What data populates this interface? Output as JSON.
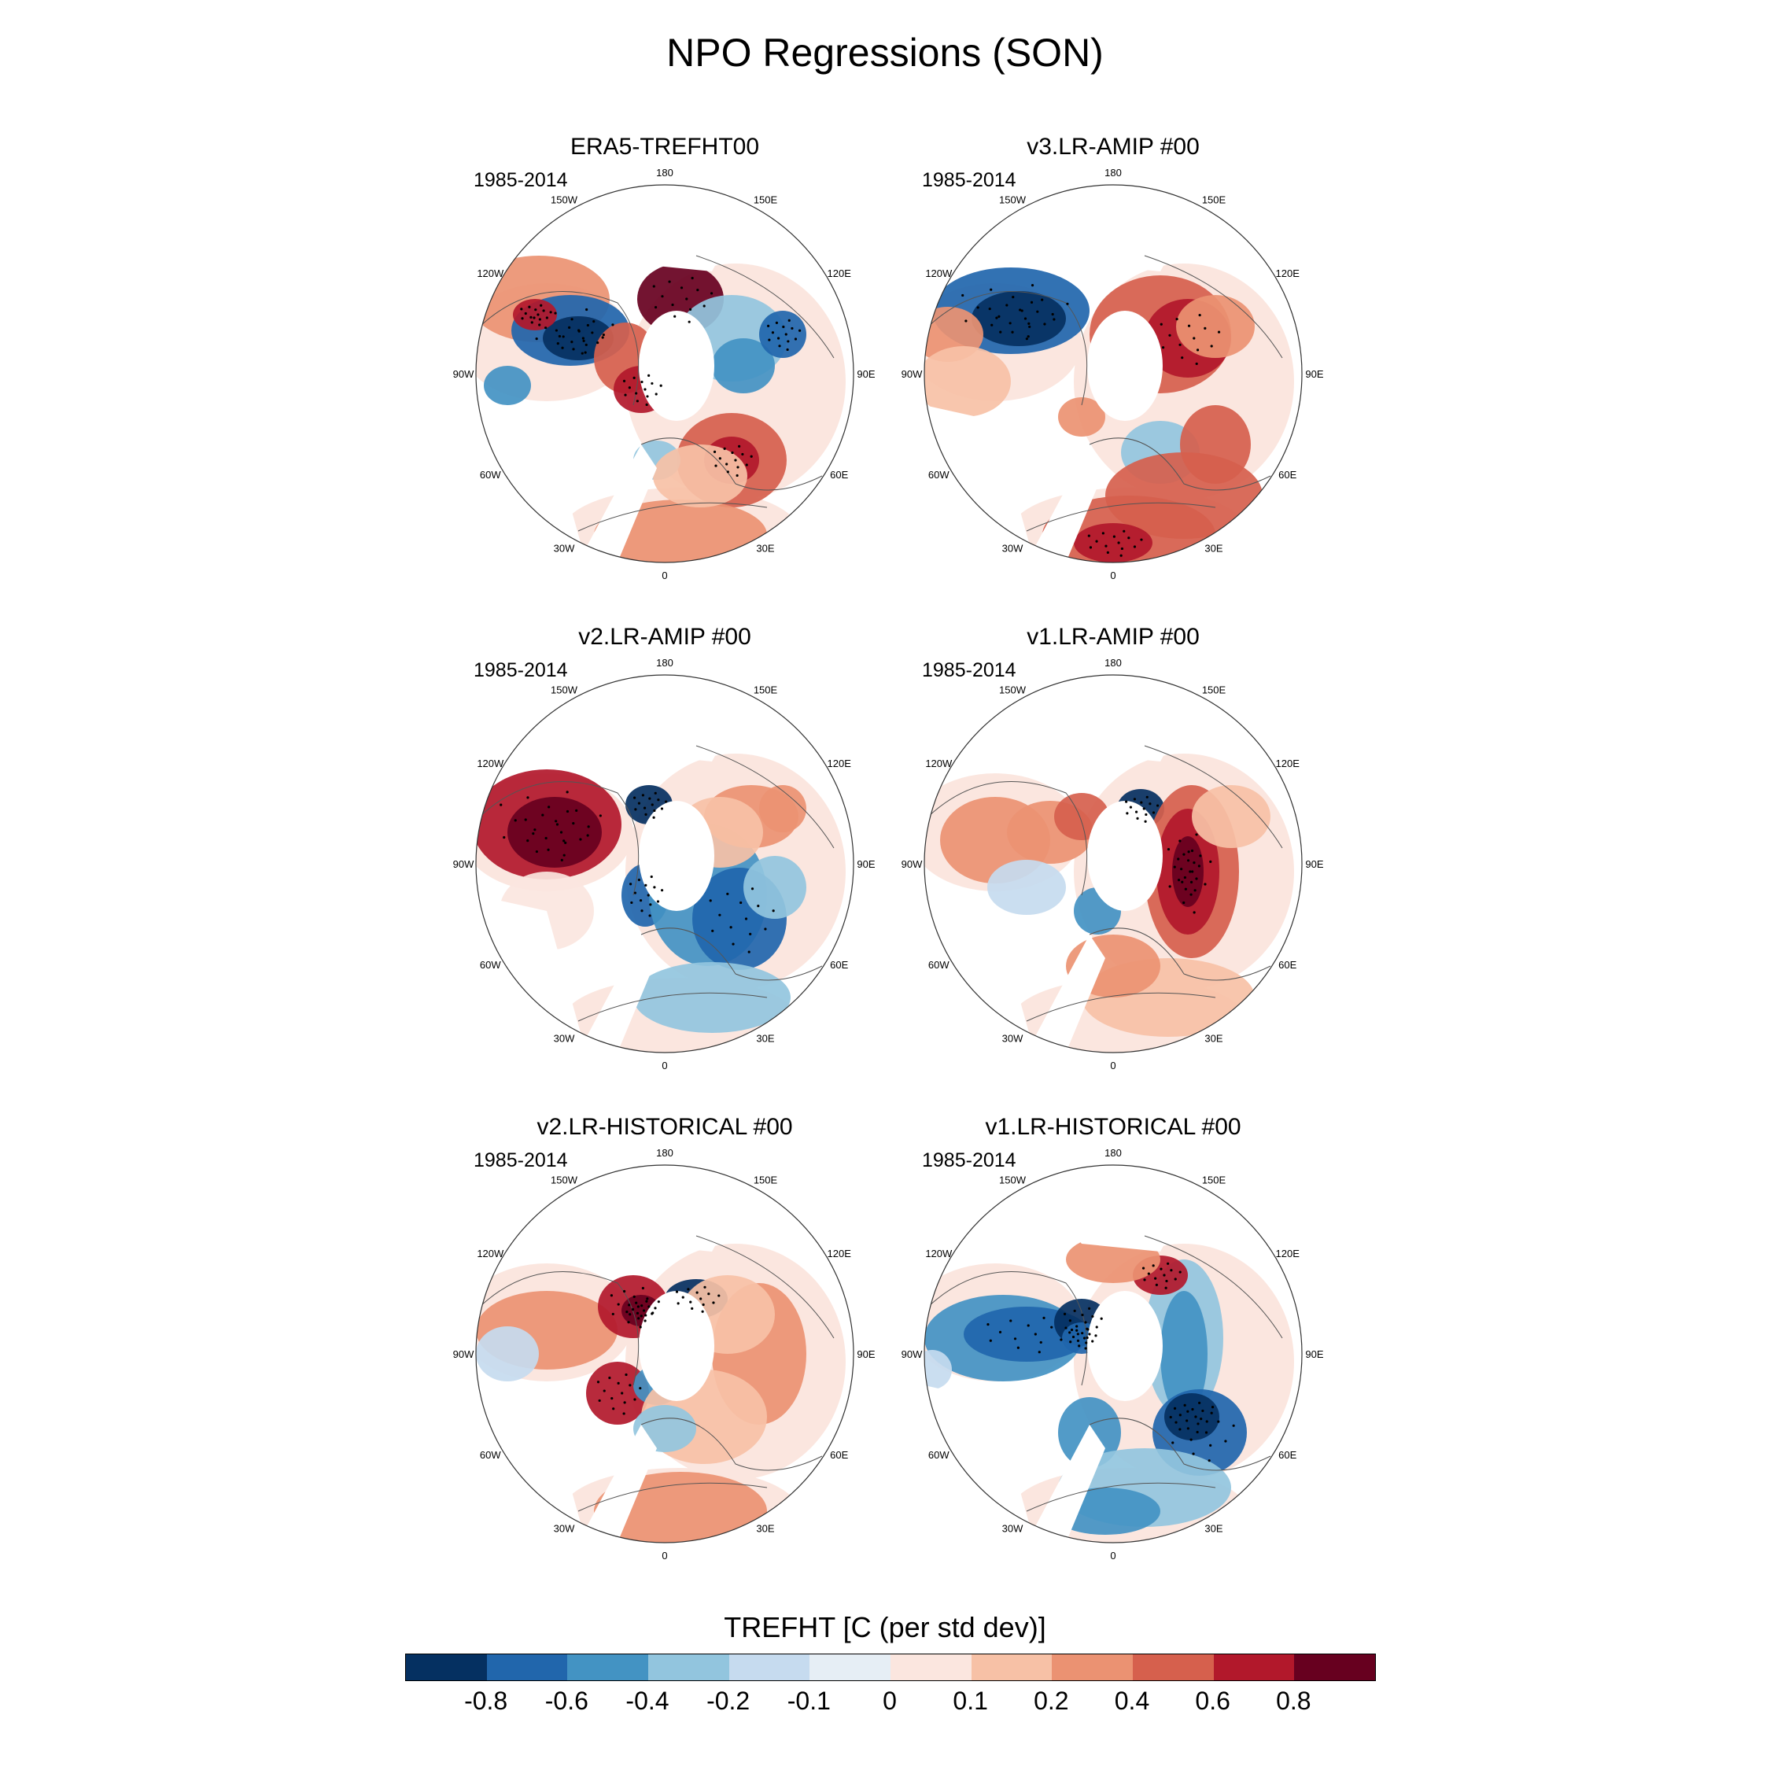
{
  "figure": {
    "title": "NPO Regressions (SON)",
    "colorbar_title": "TREFHT [C (per std dev)]",
    "colorbar_labels": [
      "-0.8",
      "-0.6",
      "-0.4",
      "-0.2",
      "-0.1",
      "0",
      "0.1",
      "0.2",
      "0.4",
      "0.6",
      "0.8"
    ],
    "colorbar_colors": [
      "#053061",
      "#2166ac",
      "#4393c3",
      "#92c5de",
      "#c6dbef",
      "#e6eef5",
      "#fbe6df",
      "#f7c1a6",
      "#eb9272",
      "#d6604d",
      "#b2182b",
      "#67001f"
    ],
    "longitude_labels": {
      "top": "180",
      "top_left": "150W",
      "top_right": "150E",
      "upper_left": "120W",
      "upper_right": "120E",
      "left": "90W",
      "right": "90E",
      "lower_left": "60W",
      "lower_right": "60E",
      "bottom_left": "30W",
      "bottom_right": "30E",
      "bottom": "0"
    }
  },
  "panels": [
    {
      "title": "ERA5-TREFHT00",
      "period": "1985-2014"
    },
    {
      "title": "v3.LR-AMIP  #00",
      "period": "1985-2014"
    },
    {
      "title": "v2.LR-AMIP  #00",
      "period": "1985-2014"
    },
    {
      "title": "v1.LR-AMIP  #00",
      "period": "1985-2014"
    },
    {
      "title": "v2.LR-HISTORICAL  #00",
      "period": "1985-2014"
    },
    {
      "title": "v1.LR-HISTORICAL  #00",
      "period": "1985-2014"
    }
  ]
}
